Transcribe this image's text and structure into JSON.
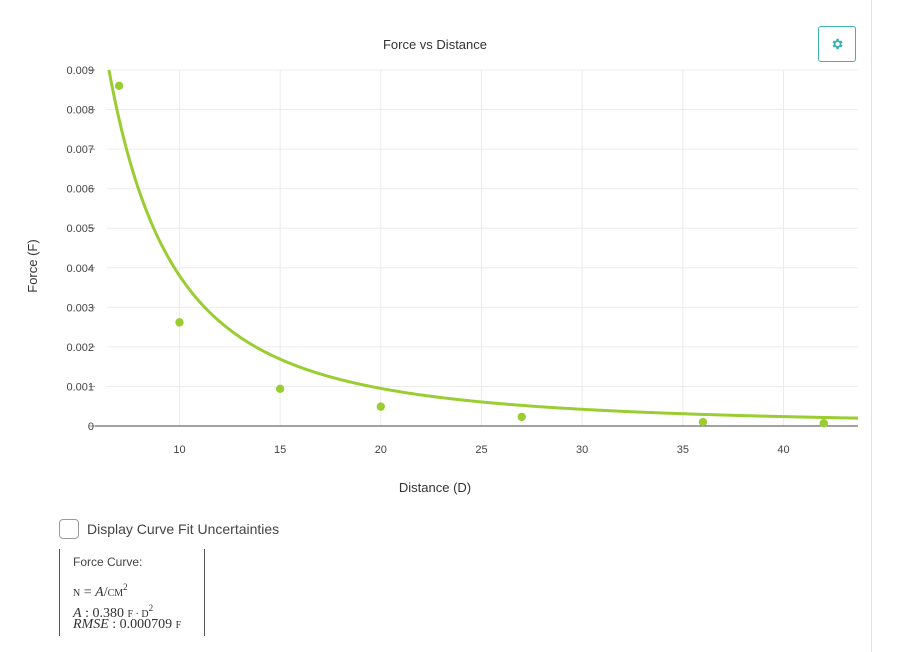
{
  "chart_data": {
    "type": "scatter",
    "title": "Force vs Distance",
    "xlabel": "Distance (D)",
    "ylabel": "Force (F)",
    "xlim": [
      6.4,
      43.7
    ],
    "ylim": [
      0,
      0.009
    ],
    "xticks": [
      10,
      15,
      20,
      25,
      30,
      35,
      40
    ],
    "xtick_labels": [
      "10",
      "15",
      "20",
      "25",
      "30",
      "35",
      "40"
    ],
    "yticks": [
      0,
      0.001,
      0.002,
      0.003,
      0.004,
      0.005,
      0.006,
      0.007,
      0.008,
      0.009
    ],
    "ytick_labels": [
      "0",
      "0.001",
      "0.002",
      "0.003",
      "0.004",
      "0.005",
      "0.006",
      "0.007",
      "0.008",
      "0.009"
    ],
    "grid": true,
    "points": {
      "x": [
        7,
        10,
        15,
        20,
        27,
        36,
        42
      ],
      "y": [
        0.0086,
        0.00262,
        0.00094,
        0.00049,
        0.00023,
        0.0001,
        7e-05
      ]
    },
    "fit": {
      "model": "A / D^2",
      "A": 0.38
    },
    "color": "#9acd32"
  },
  "controls": {
    "settings_icon": "gear-icon",
    "fit_uncertainty_label": "Display Curve Fit Uncertainties",
    "fit_uncertainty_checked": false
  },
  "curve_info": {
    "title": "Force Curve:",
    "model_lhs": "N",
    "model_eq": " = ",
    "model_rhs": "A",
    "model_slash": "/",
    "model_cm": "CM",
    "model_exp": "2",
    "a_label": "A",
    "a_value": " : 0.380",
    "a_unit": "F · D",
    "a_exp": "2",
    "rmse_label": "RMSE",
    "rmse_value": " : 0.000709",
    "rmse_unit": "F"
  },
  "colors": {
    "accent": "#9acd32",
    "button_border": "#3bb1b1"
  }
}
